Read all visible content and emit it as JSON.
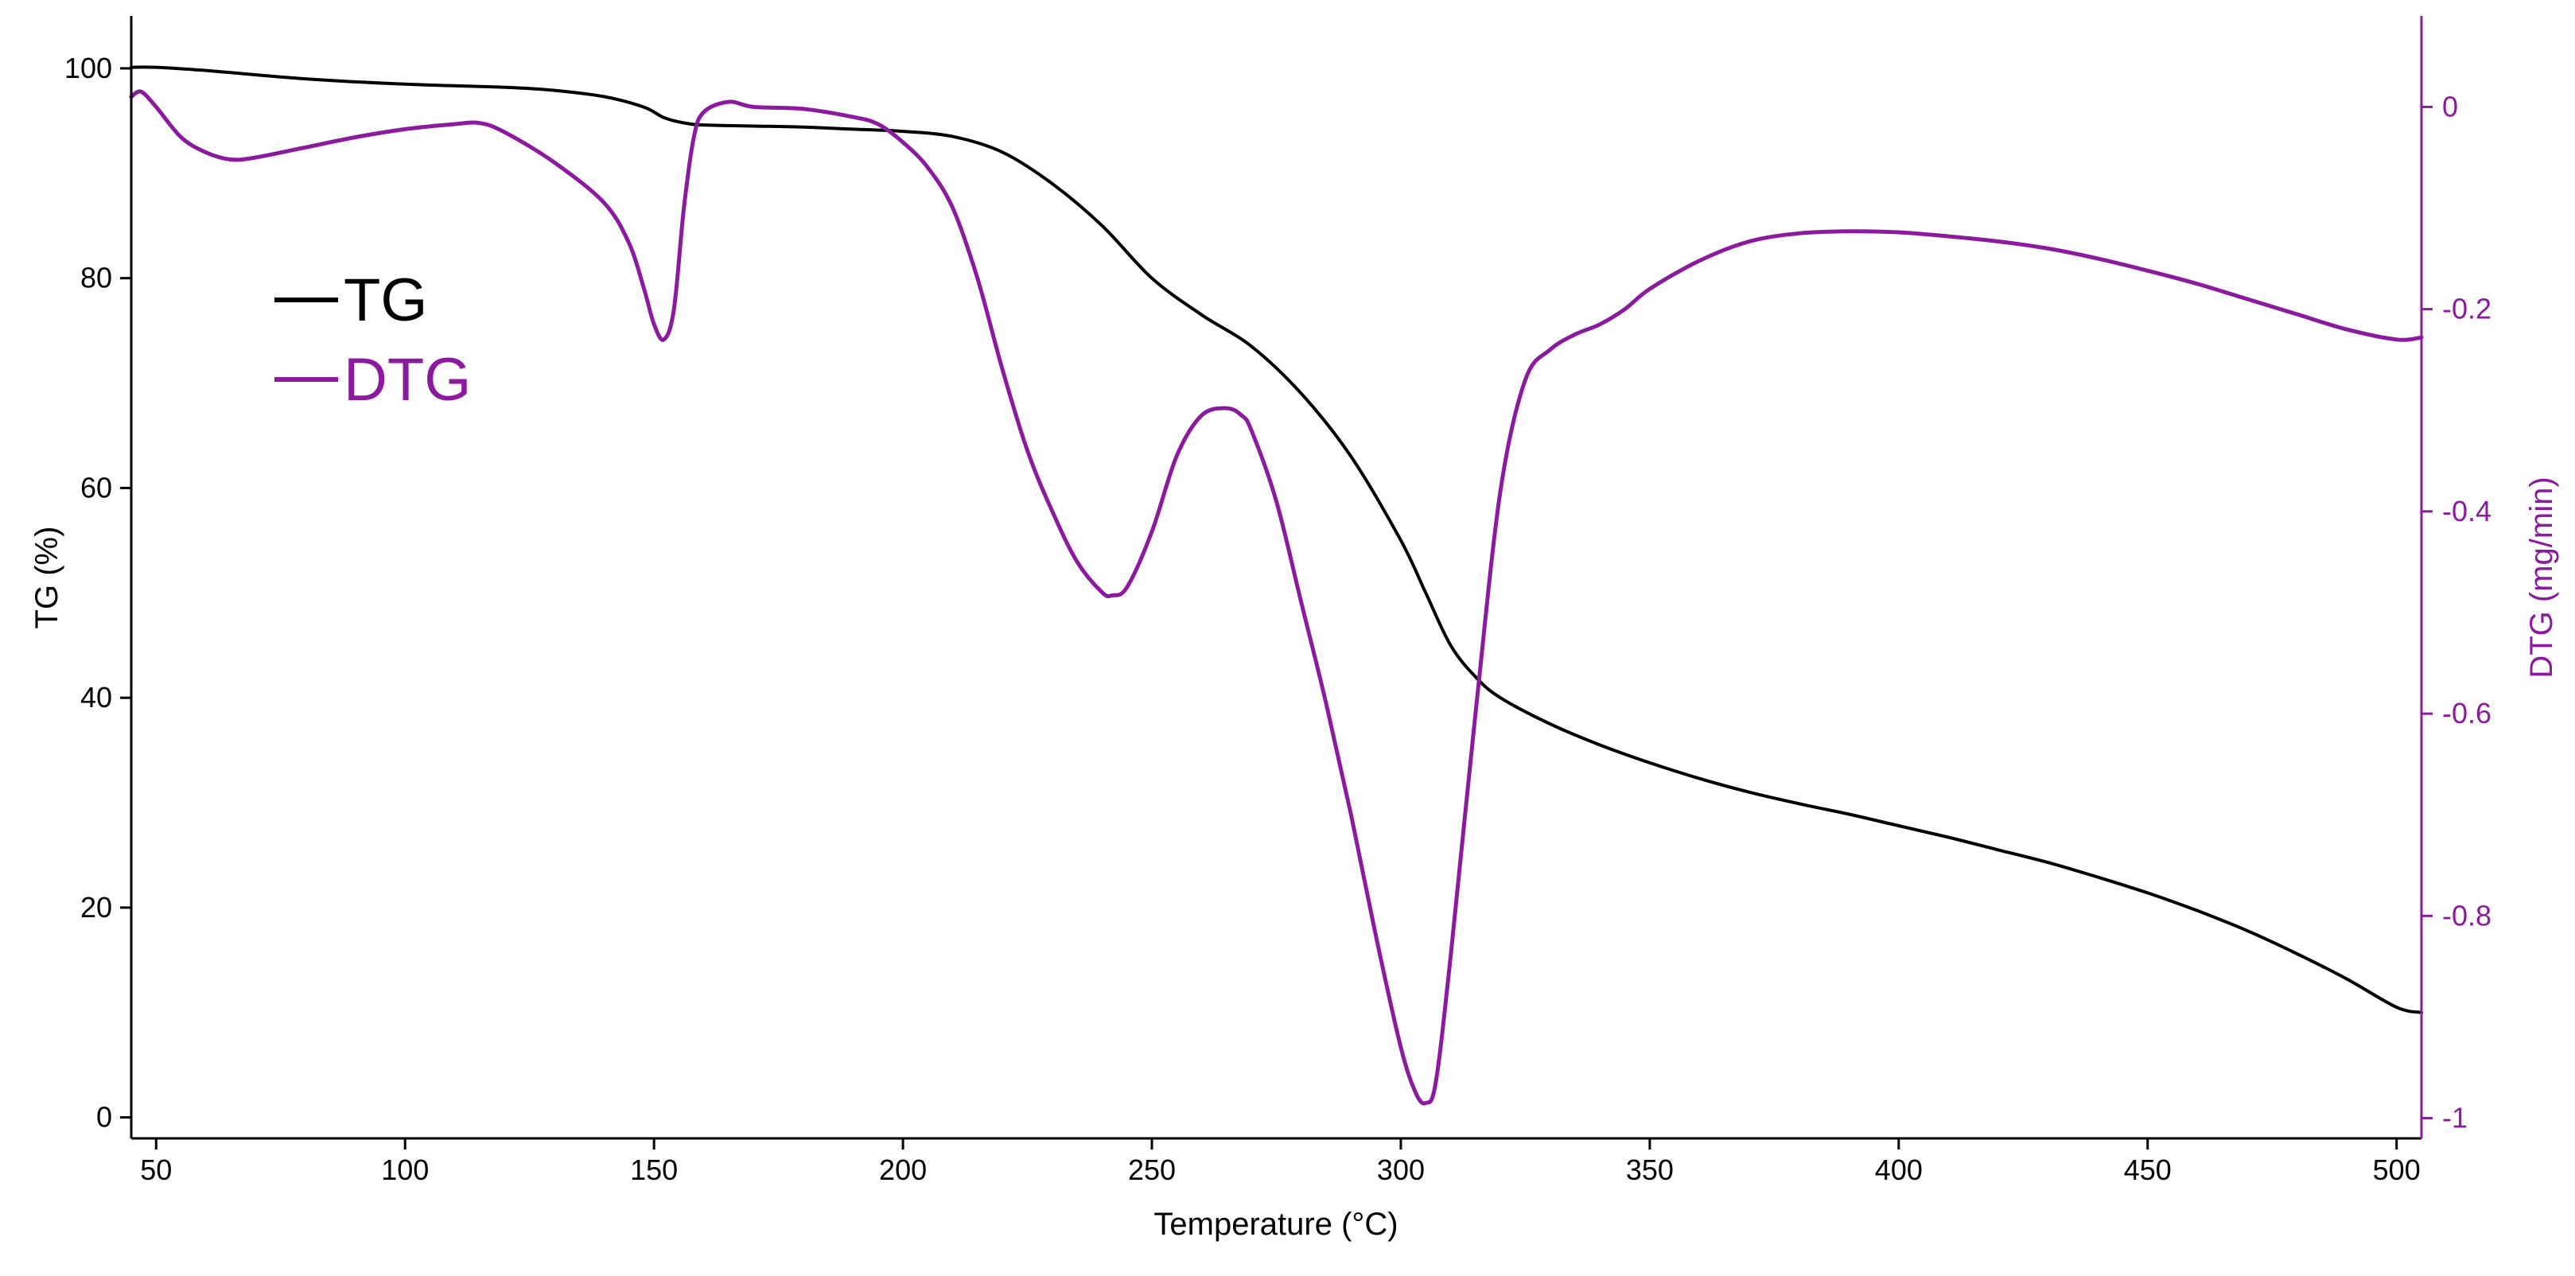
{
  "chart_data": {
    "type": "line",
    "title": "",
    "xlabel": "Temperature (°C)",
    "ylabel_left": "TG (%)",
    "ylabel_right": "DTG (mg/min)",
    "xlim": [
      45,
      505
    ],
    "ylim_left": [
      -2,
      105
    ],
    "ylim_right": [
      -1.02,
      0.09
    ],
    "x_ticks": [
      "50",
      "100",
      "150",
      "200",
      "250",
      "300",
      "350",
      "400",
      "450",
      "500"
    ],
    "y_left_ticks": [
      "0",
      "20",
      "40",
      "60",
      "80",
      "100"
    ],
    "y_right_ticks": [
      "0",
      "-0.2",
      "-0.4",
      "-0.6",
      "-0.8",
      "-1"
    ],
    "grid": false,
    "legend_position": "upper-left",
    "colors": {
      "TG": "#000000",
      "DTG": "#8B1A9E"
    },
    "series": [
      {
        "name": "TG",
        "axis": "left",
        "x": [
          45,
          50,
          60,
          80,
          100,
          120,
          130,
          140,
          148,
          152,
          156,
          160,
          170,
          180,
          190,
          200,
          210,
          220,
          230,
          240,
          250,
          260,
          270,
          280,
          290,
          300,
          305,
          310,
          315,
          320,
          330,
          340,
          350,
          360,
          370,
          380,
          390,
          400,
          410,
          420,
          430,
          440,
          450,
          460,
          470,
          480,
          490,
          500,
          505
        ],
        "y": [
          100.1,
          100.1,
          99.8,
          99.0,
          98.5,
          98.2,
          97.9,
          97.3,
          96.3,
          95.3,
          94.8,
          94.6,
          94.5,
          94.4,
          94.2,
          94.0,
          93.5,
          92.0,
          89.0,
          85.0,
          80.0,
          76.5,
          73.5,
          69.0,
          63.0,
          55.0,
          50.0,
          45.0,
          42.0,
          40.0,
          37.5,
          35.5,
          33.8,
          32.3,
          31.0,
          29.9,
          28.9,
          27.8,
          26.7,
          25.5,
          24.3,
          22.9,
          21.4,
          19.7,
          17.8,
          15.6,
          13.2,
          10.5,
          10.0
        ]
      },
      {
        "name": "DTG",
        "axis": "right",
        "x": [
          45,
          47,
          50,
          55,
          60,
          65,
          70,
          80,
          90,
          100,
          110,
          115,
          120,
          130,
          140,
          145,
          148,
          150,
          152,
          154,
          156,
          158,
          160,
          165,
          170,
          180,
          190,
          195,
          200,
          205,
          210,
          215,
          220,
          225,
          230,
          235,
          240,
          242,
          245,
          250,
          255,
          260,
          265,
          268,
          270,
          275,
          280,
          285,
          290,
          295,
          300,
          303,
          305,
          307,
          310,
          315,
          320,
          325,
          330,
          335,
          340,
          345,
          350,
          360,
          370,
          380,
          390,
          400,
          410,
          420,
          430,
          440,
          450,
          460,
          470,
          480,
          490,
          500,
          505
        ],
        "y": [
          0.01,
          0.015,
          0.0,
          -0.03,
          -0.045,
          -0.052,
          -0.05,
          -0.04,
          -0.03,
          -0.022,
          -0.017,
          -0.016,
          -0.025,
          -0.055,
          -0.095,
          -0.135,
          -0.18,
          -0.215,
          -0.23,
          -0.2,
          -0.1,
          -0.03,
          -0.005,
          0.005,
          0.0,
          -0.002,
          -0.01,
          -0.017,
          -0.035,
          -0.06,
          -0.1,
          -0.17,
          -0.26,
          -0.34,
          -0.4,
          -0.45,
          -0.48,
          -0.483,
          -0.475,
          -0.42,
          -0.345,
          -0.305,
          -0.298,
          -0.305,
          -0.32,
          -0.39,
          -0.49,
          -0.59,
          -0.7,
          -0.82,
          -0.93,
          -0.975,
          -0.985,
          -0.965,
          -0.84,
          -0.6,
          -0.38,
          -0.27,
          -0.24,
          -0.225,
          -0.215,
          -0.2,
          -0.18,
          -0.152,
          -0.133,
          -0.125,
          -0.123,
          -0.124,
          -0.128,
          -0.133,
          -0.14,
          -0.15,
          -0.162,
          -0.175,
          -0.19,
          -0.205,
          -0.22,
          -0.23,
          -0.228
        ]
      }
    ]
  }
}
